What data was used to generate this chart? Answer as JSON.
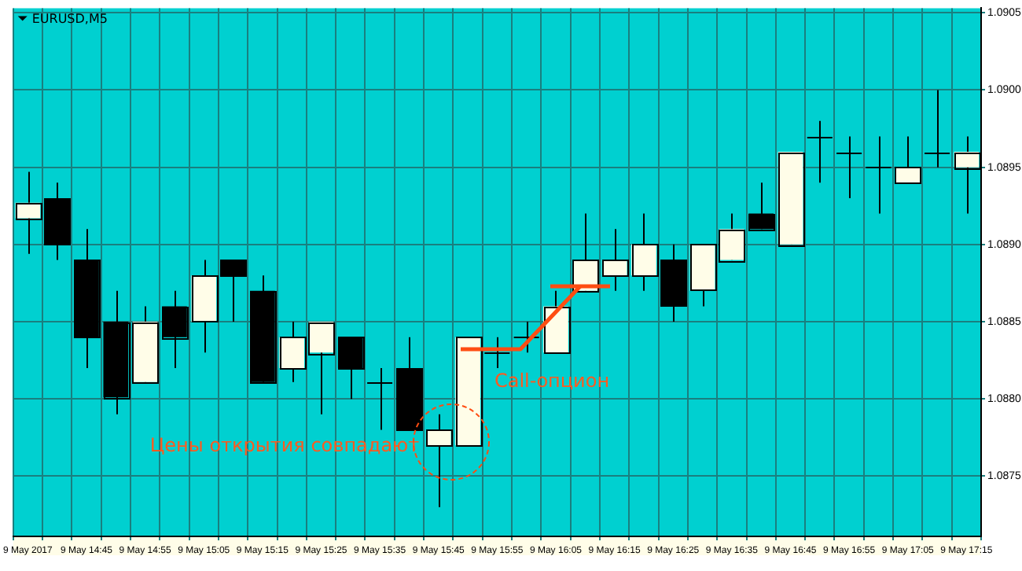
{
  "chart_data": {
    "type": "candlestick",
    "title": "EURUSD,M5",
    "categories": [
      "9 May 2017",
      null,
      "9 May 14:45",
      null,
      "9 May 14:55",
      null,
      "9 May 15:05",
      null,
      "9 May 15:15",
      null,
      "9 May 15:25",
      null,
      "9 May 15:35",
      null,
      "9 May 15:45",
      null,
      "9 May 15:55",
      null,
      "9 May 16:05",
      null,
      "9 May 16:15",
      null,
      "9 May 16:25",
      null,
      "9 May 16:35",
      null,
      "9 May 16:45",
      null,
      "9 May 16:55",
      null,
      "9 May 17:05",
      null,
      "9 May 17:15"
    ],
    "ohlc": [
      [
        1.08917,
        1.08947,
        1.08894,
        1.08927
      ],
      [
        1.0893,
        1.0894,
        1.0889,
        1.089
      ],
      [
        1.0889,
        1.0891,
        1.0882,
        1.0884
      ],
      [
        1.0885,
        1.0887,
        1.0879,
        1.08801
      ],
      [
        1.08811,
        1.0886,
        1.08811,
        1.0885
      ],
      [
        1.0886,
        1.0887,
        1.0882,
        1.0884
      ],
      [
        1.0885,
        1.0889,
        1.0883,
        1.0888
      ],
      [
        1.0889,
        1.0889,
        1.0885,
        1.0888
      ],
      [
        1.0887,
        1.0888,
        1.08811,
        1.08811
      ],
      [
        1.0882,
        1.0885,
        1.08811,
        1.0884
      ],
      [
        1.0883,
        1.0885,
        1.0879,
        1.0885
      ],
      [
        1.0884,
        1.0884,
        1.088,
        1.0882
      ],
      [
        1.08811,
        1.0882,
        1.0878,
        1.08811
      ],
      [
        1.0882,
        1.0884,
        1.0878,
        1.0878
      ],
      [
        1.0877,
        1.0879,
        1.0873,
        1.0878
      ],
      [
        1.0877,
        1.0884,
        1.0877,
        1.0884
      ],
      [
        1.0883,
        1.0884,
        1.0882,
        1.0883
      ],
      [
        1.0884,
        1.0885,
        1.0883,
        1.0884
      ],
      [
        1.0883,
        1.0887,
        1.0883,
        1.0886
      ],
      [
        1.0887,
        1.0892,
        1.0887,
        1.0889
      ],
      [
        1.0888,
        1.0891,
        1.0887,
        1.0889
      ],
      [
        1.0888,
        1.0892,
        1.0887,
        1.089
      ],
      [
        1.0889,
        1.089,
        1.0885,
        1.0886
      ],
      [
        1.0887,
        1.089,
        1.0886,
        1.089
      ],
      [
        1.0889,
        1.0892,
        1.0889,
        1.0891
      ],
      [
        1.0892,
        1.0894,
        1.0891,
        1.0891
      ],
      [
        1.089,
        1.0896,
        1.089,
        1.0896
      ],
      [
        1.0897,
        1.0898,
        1.0894,
        1.0897
      ],
      [
        1.0896,
        1.0897,
        1.0893,
        1.0896
      ],
      [
        1.0895,
        1.0897,
        1.0892,
        1.0895
      ],
      [
        1.0894,
        1.0897,
        1.0894,
        1.0895
      ],
      [
        1.0896,
        1.09,
        1.0895,
        1.0896
      ],
      [
        1.0895,
        1.0897,
        1.0892,
        1.0896
      ]
    ],
    "colors": [
      "#fffde8",
      "#000000",
      "#000000",
      "#000000",
      "#fffde8",
      "#000000",
      "#fffde8",
      "#000000",
      "#000000",
      "#fffde8",
      "#fffde8",
      "#000000",
      "#000000",
      "#000000",
      "#fffde8",
      "#fffde8",
      "#000000",
      "#000000",
      "#fffde8",
      "#fffde8",
      "#fffde8",
      "#fffde8",
      "#000000",
      "#fffde8",
      "#fffde8",
      "#000000",
      "#fffde8",
      "#000000",
      "#000000",
      "#000000",
      "#fffde8",
      "#000000",
      "#fffde8"
    ],
    "ylim": [
      1.08711,
      1.09053
    ],
    "yticks": [
      1.0875,
      {
        "value": 1.088,
        "label": "1.0880"
      },
      1.0885,
      {
        "value": 1.089,
        "label": "1.0890"
      },
      1.0895,
      {
        "value": 1.09,
        "label": "1.0900"
      },
      1.0905
    ],
    "grid": true,
    "annotations": [
      "Цены открытия совпадают",
      "Call-опцион"
    ]
  }
}
